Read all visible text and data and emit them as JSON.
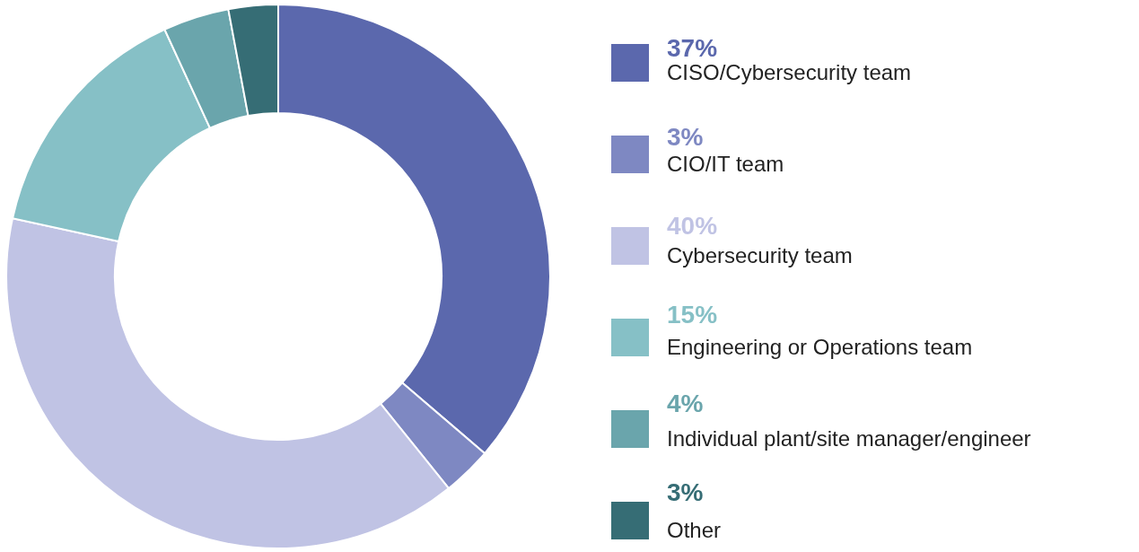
{
  "chart_data": {
    "type": "donut",
    "categories": [
      "CISO/Cybersecurity team",
      "CIO/IT team",
      "Cybersecurity team",
      "Engineering or Operations team",
      "Individual plant/site manager/engineer",
      "Other"
    ],
    "values": [
      37,
      3,
      40,
      15,
      4,
      3
    ],
    "value_labels": [
      "37%",
      "3%",
      "40%",
      "15%",
      "4%",
      "3%"
    ],
    "colors": [
      "#5b68ad",
      "#7e88c2",
      "#c0c3e4",
      "#86c0c6",
      "#6aa5ac",
      "#366d75"
    ],
    "legend": "right"
  }
}
